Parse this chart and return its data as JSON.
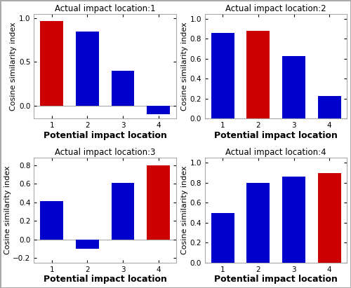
{
  "subplots": [
    {
      "title": "Actual impact location:1",
      "values": [
        0.97,
        0.85,
        0.4,
        -0.1
      ],
      "red_index": 0,
      "ylim": [
        -0.15,
        1.05
      ],
      "yticks": [
        0,
        0.5,
        1.0
      ]
    },
    {
      "title": "Actual impact location:2",
      "values": [
        0.86,
        0.88,
        0.63,
        0.23
      ],
      "red_index": 1,
      "ylim": [
        0,
        1.05
      ],
      "yticks": [
        0,
        0.2,
        0.4,
        0.6,
        0.8,
        1.0
      ]
    },
    {
      "title": "Actual impact location:3",
      "values": [
        0.41,
        -0.1,
        0.61,
        0.8
      ],
      "red_index": 3,
      "ylim": [
        -0.25,
        0.88
      ],
      "yticks": [
        -0.2,
        0,
        0.2,
        0.4,
        0.6,
        0.8
      ]
    },
    {
      "title": "Actual impact location:4",
      "values": [
        0.5,
        0.8,
        0.86,
        0.9
      ],
      "red_index": 3,
      "ylim": [
        0,
        1.05
      ],
      "yticks": [
        0,
        0.2,
        0.4,
        0.6,
        0.8,
        1.0
      ]
    }
  ],
  "xlabel": "Potential impact location",
  "ylabel": "Cosine similarity index",
  "bar_color_blue": "#0000cc",
  "bar_color_red": "#cc0000",
  "xticks": [
    1,
    2,
    3,
    4
  ],
  "bar_width": 0.65,
  "title_fontsize": 8.5,
  "tick_fontsize": 7.5,
  "xlabel_fontsize": 9,
  "ylabel_fontsize": 8
}
